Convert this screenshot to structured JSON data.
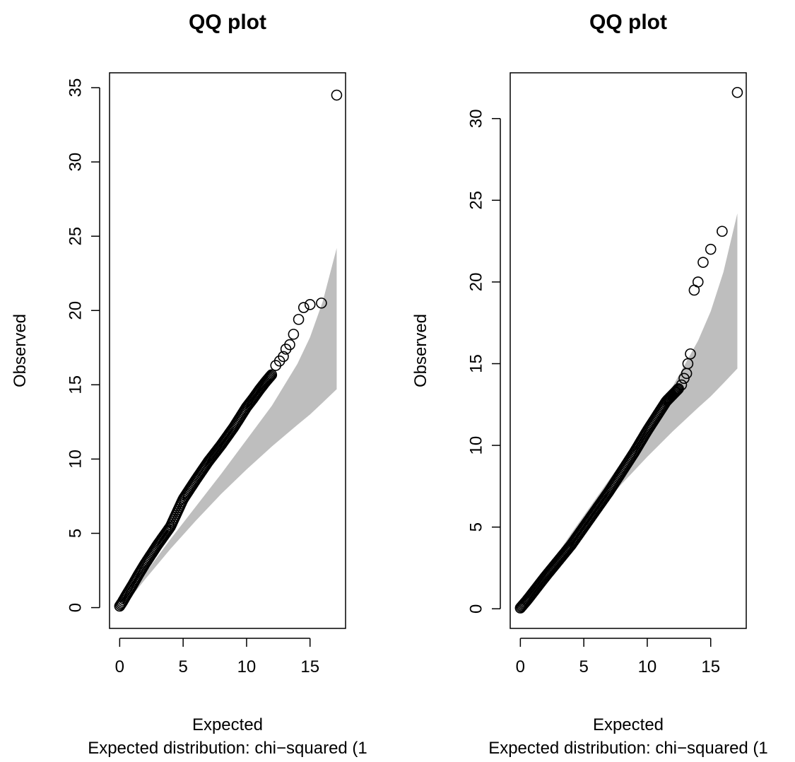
{
  "chart_data": [
    {
      "type": "scatter",
      "title": "QQ plot",
      "xlabel": "Expected",
      "ylabel": "Observed",
      "subtitle": "Expected distribution: chi−squared (1",
      "xlim": [
        -0.8,
        17.8
      ],
      "ylim": [
        -1.4,
        36.0
      ],
      "x_ticks": [
        0,
        5,
        10,
        15
      ],
      "y_ticks": [
        0,
        5,
        10,
        15,
        20,
        25,
        30,
        35
      ],
      "band_color": "#bebebe",
      "point_color": "#000000",
      "confidence_band": {
        "x": [
          0.7,
          2,
          4,
          6,
          8,
          10,
          12,
          14,
          15,
          16,
          17.1
        ],
        "lower": [
          0.5,
          1.9,
          3.95,
          5.85,
          7.65,
          9.3,
          10.85,
          12.3,
          13.0,
          13.8,
          14.7
        ],
        "upper": [
          0.8,
          2.3,
          4.6,
          6.8,
          9.0,
          11.3,
          13.6,
          16.4,
          18.2,
          20.6,
          24.2
        ]
      },
      "dense_curve": {
        "x": [
          0,
          0.2,
          0.5,
          1,
          1.5,
          2,
          3,
          4,
          5,
          6,
          7,
          8,
          9,
          10,
          10.5,
          11,
          11.5,
          12
        ],
        "y": [
          0.1,
          0.35,
          0.8,
          1.5,
          2.25,
          2.95,
          4.25,
          5.45,
          7.3,
          8.6,
          9.85,
          10.95,
          12.15,
          13.5,
          14.05,
          14.65,
          15.2,
          15.7
        ]
      },
      "points": [
        {
          "x": 12.3,
          "y": 16.3
        },
        {
          "x": 12.6,
          "y": 16.6
        },
        {
          "x": 12.9,
          "y": 16.9
        },
        {
          "x": 13.1,
          "y": 17.4
        },
        {
          "x": 13.4,
          "y": 17.7
        },
        {
          "x": 13.7,
          "y": 18.4
        },
        {
          "x": 14.1,
          "y": 19.4
        },
        {
          "x": 14.5,
          "y": 20.2
        },
        {
          "x": 15.0,
          "y": 20.4
        },
        {
          "x": 15.9,
          "y": 20.5
        },
        {
          "x": 17.1,
          "y": 34.5
        }
      ]
    },
    {
      "type": "scatter",
      "title": "QQ plot",
      "xlabel": "Expected",
      "ylabel": "Observed",
      "subtitle": "Expected distribution: chi−squared (1",
      "xlim": [
        -0.8,
        17.8
      ],
      "ylim": [
        -1.2,
        32.8
      ],
      "x_ticks": [
        0,
        5,
        10,
        15
      ],
      "y_ticks": [
        0,
        5,
        10,
        15,
        20,
        25,
        30
      ],
      "band_color": "#bebebe",
      "point_color": "#000000",
      "confidence_band": {
        "x": [
          0.7,
          2,
          4,
          6,
          8,
          10,
          12,
          14,
          15,
          16,
          17.1
        ],
        "lower": [
          0.5,
          1.9,
          3.95,
          5.85,
          7.65,
          9.3,
          10.85,
          12.3,
          13.0,
          13.8,
          14.7
        ],
        "upper": [
          0.8,
          2.3,
          4.6,
          6.8,
          9.0,
          11.3,
          13.6,
          16.4,
          18.2,
          20.6,
          24.2
        ]
      },
      "dense_curve": {
        "x": [
          0,
          0.5,
          1,
          2,
          3,
          4,
          5,
          6,
          7,
          8,
          9,
          10,
          10.5,
          11,
          11.5,
          12,
          12.5
        ],
        "y": [
          0.05,
          0.5,
          1.0,
          2.0,
          2.95,
          3.9,
          5.0,
          6.1,
          7.2,
          8.4,
          9.6,
          10.9,
          11.5,
          12.1,
          12.7,
          13.1,
          13.5
        ]
      },
      "points": [
        {
          "x": 12.7,
          "y": 13.7
        },
        {
          "x": 12.9,
          "y": 14.1
        },
        {
          "x": 13.1,
          "y": 14.4
        },
        {
          "x": 13.2,
          "y": 15.0
        },
        {
          "x": 13.4,
          "y": 15.6
        },
        {
          "x": 13.7,
          "y": 19.5
        },
        {
          "x": 14.0,
          "y": 20.0
        },
        {
          "x": 14.4,
          "y": 21.2
        },
        {
          "x": 15.0,
          "y": 22.0
        },
        {
          "x": 15.9,
          "y": 23.1
        },
        {
          "x": 17.1,
          "y": 31.6
        }
      ]
    }
  ]
}
